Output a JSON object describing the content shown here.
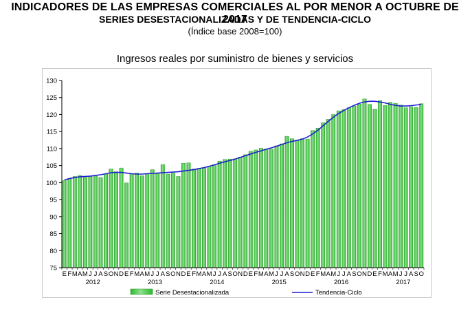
{
  "header": {
    "title_line1": "INDICADORES DE LAS EMPRESAS COMERCIALES AL POR MENOR A OCTUBRE DE 2017",
    "title_line2": "SERIES DESESTACIONALIZADAS Y DE TENDENCIA-CICLO",
    "title_line3": "(Índice base 2008=100)"
  },
  "colors": {
    "bar_fill": "#2db82d",
    "bar_highlight": "#8fe08f",
    "trend_line": "#1f1fd0",
    "axis": "#000000"
  },
  "chart_data": {
    "type": "bar",
    "title": "Ingresos reales por suministro de bienes y servicios",
    "xlabel": "",
    "ylabel": "",
    "ylim": [
      75,
      130
    ],
    "yticks": [
      75,
      80,
      85,
      90,
      95,
      100,
      105,
      110,
      115,
      120,
      125,
      130
    ],
    "grid": false,
    "legend_position": "bottom",
    "month_labels": [
      "E",
      "F",
      "M",
      "A",
      "M",
      "J",
      "J",
      "A",
      "S",
      "O",
      "N",
      "D",
      "E",
      "F",
      "M",
      "A",
      "M",
      "J",
      "J",
      "A",
      "S",
      "O",
      "N",
      "D",
      "E",
      "F",
      "M",
      "A",
      "M",
      "J",
      "J",
      "A",
      "S",
      "O",
      "N",
      "D",
      "E",
      "F",
      "M",
      "A",
      "M",
      "J",
      "J",
      "A",
      "S",
      "O",
      "N",
      "D",
      "E",
      "F",
      "M",
      "A",
      "M",
      "J",
      "J",
      "A",
      "S",
      "O",
      "N",
      "D",
      "E",
      "F",
      "M",
      "A",
      "M",
      "J",
      "J",
      "A",
      "S",
      "O"
    ],
    "year_labels": [
      "2012",
      "2013",
      "2014",
      "2015",
      "2016",
      "2017"
    ],
    "series": [
      {
        "name": "Serie Desestacionalizada",
        "type": "bar",
        "values": [
          100.6,
          101.2,
          101.8,
          102.1,
          101.7,
          101.8,
          101.9,
          101.5,
          102.5,
          104.0,
          103.2,
          104.3,
          99.9,
          102.5,
          102.8,
          102.0,
          102.7,
          103.8,
          102.6,
          105.3,
          102.5,
          102.8,
          101.8,
          105.7,
          105.8,
          104.0,
          104.2,
          104.4,
          104.8,
          105.3,
          106.3,
          106.8,
          106.9,
          107.0,
          107.5,
          108.2,
          109.2,
          109.6,
          110.1,
          109.9,
          109.8,
          110.8,
          111.4,
          113.6,
          112.9,
          112.5,
          112.9,
          112.8,
          115.3,
          116.0,
          117.6,
          118.6,
          120.0,
          121.1,
          121.5,
          122.0,
          122.5,
          123.1,
          124.6,
          123.0,
          121.6,
          124.1,
          122.7,
          123.6,
          123.3,
          122.8,
          122.0,
          122.3,
          122.1,
          123.2
        ]
      },
      {
        "name": "Tendencia-Ciclo",
        "type": "line",
        "values": [
          100.8,
          101.2,
          101.5,
          101.7,
          101.8,
          101.9,
          102.1,
          102.3,
          102.6,
          102.9,
          103.0,
          103.0,
          102.8,
          102.6,
          102.5,
          102.5,
          102.6,
          102.7,
          102.8,
          102.9,
          103.0,
          103.1,
          103.2,
          103.4,
          103.6,
          103.8,
          104.1,
          104.4,
          104.8,
          105.2,
          105.7,
          106.1,
          106.5,
          106.9,
          107.4,
          107.9,
          108.4,
          108.9,
          109.3,
          109.8,
          110.2,
          110.7,
          111.2,
          111.7,
          112.1,
          112.4,
          112.8,
          113.4,
          114.3,
          115.4,
          116.7,
          118.0,
          119.2,
          120.3,
          121.2,
          122.0,
          122.7,
          123.3,
          123.7,
          123.9,
          123.9,
          123.7,
          123.4,
          123.0,
          122.7,
          122.5,
          122.5,
          122.6,
          122.8,
          123.0
        ]
      }
    ]
  }
}
